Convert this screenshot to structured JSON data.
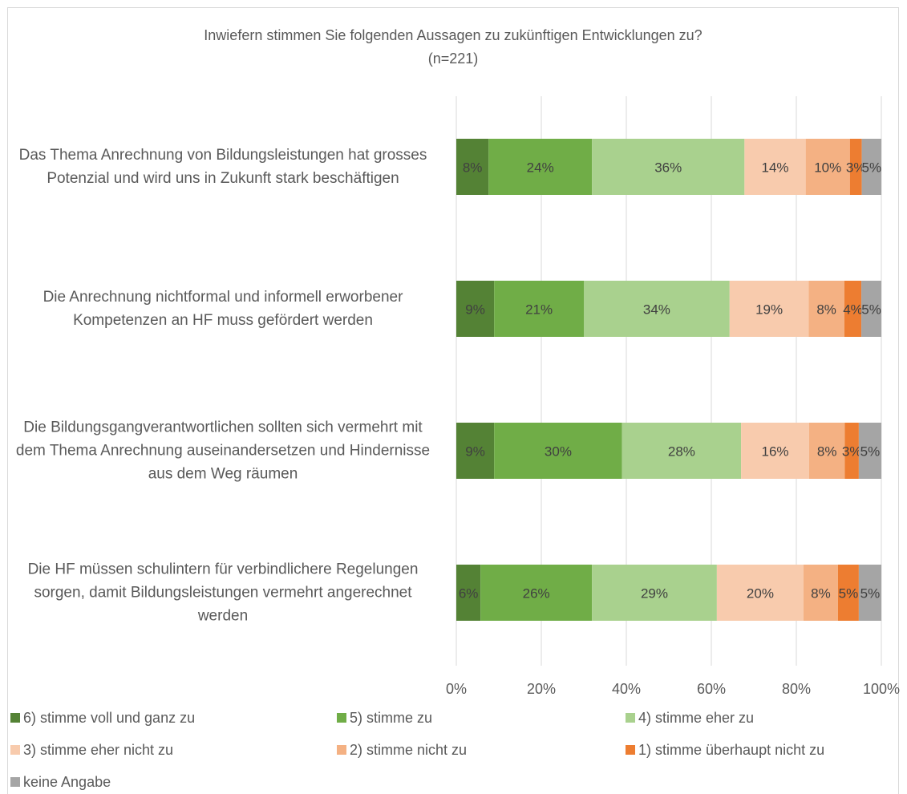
{
  "chart_data": {
    "type": "stacked_bar_horizontal",
    "title": "Inwiefern stimmen Sie folgenden Aussagen zu zukünftigen Entwicklungen zu?",
    "subtitle": "(n=221)",
    "categories": [
      "Das Thema Anrechnung von Bildungsleistungen hat grosses Potenzial und wird uns in Zukunft stark beschäftigen",
      "Die Anrechnung nichtformal und informell erworbener Kompetenzen an HF muss gefördert werden",
      "Die Bildungsgangverantwortlichen sollten sich vermehrt mit dem Thema Anrechnung auseinandersetzen und Hindernisse aus dem Weg räumen",
      "Die HF müssen schulintern für verbindlichere Regelungen sorgen, damit Bildungsleistungen vermehrt angerechnet werden"
    ],
    "series": [
      {
        "name": "6) stimme voll und ganz zu",
        "color": "#548235",
        "values": [
          7.6,
          8.9,
          8.9,
          5.7
        ],
        "value_labels": [
          "8%",
          "9%",
          "9%",
          "6%"
        ]
      },
      {
        "name": "5) stimme zu",
        "color": "#70ad47",
        "values": [
          24.3,
          21.1,
          30.1,
          26.2
        ],
        "value_labels": [
          "24%",
          "21%",
          "30%",
          "26%"
        ]
      },
      {
        "name": "4) stimme eher zu",
        "color": "#a9d18e",
        "values": [
          35.9,
          34.3,
          28.0,
          29.4
        ],
        "value_labels": [
          "36%",
          "34%",
          "28%",
          "29%"
        ]
      },
      {
        "name": "3) stimme eher nicht zu",
        "color": "#f8cbad",
        "values": [
          14.4,
          18.6,
          16.0,
          20.4
        ],
        "value_labels": [
          "14%",
          "19%",
          "16%",
          "20%"
        ]
      },
      {
        "name": "2) stimme nicht zu",
        "color": "#f4b183",
        "values": [
          10.4,
          8.4,
          8.4,
          8.1
        ],
        "value_labels": [
          "10%",
          "8%",
          "8%",
          "8%"
        ]
      },
      {
        "name": "1) stimme überhaupt nicht zu",
        "color": "#ed7d31",
        "values": [
          2.8,
          4.0,
          3.3,
          4.9
        ],
        "value_labels": [
          "3%",
          "4%",
          "3%",
          "5%"
        ]
      },
      {
        "name": "keine Angabe",
        "color": "#a5a5a5",
        "values": [
          4.6,
          4.7,
          5.3,
          5.3
        ],
        "value_labels": [
          "5%",
          "5%",
          "5%",
          "5%"
        ]
      }
    ],
    "xlim": [
      0,
      100
    ],
    "xticks": [
      {
        "value": 0,
        "label": "0%"
      },
      {
        "value": 20,
        "label": "20%"
      },
      {
        "value": 40,
        "label": "40%"
      },
      {
        "value": 60,
        "label": "60%"
      },
      {
        "value": 80,
        "label": "80%"
      },
      {
        "value": 100,
        "label": "100%"
      }
    ],
    "grid": true,
    "legend": "bottom"
  }
}
